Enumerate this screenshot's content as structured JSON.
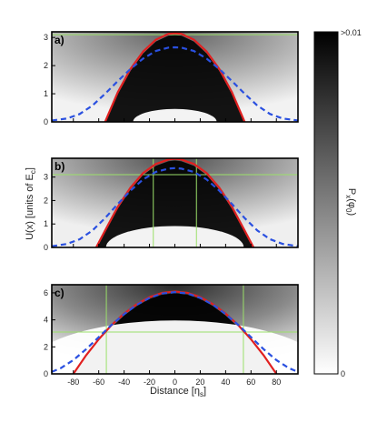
{
  "chart_data": [
    {
      "type": "heatmap",
      "panel_label": "a)",
      "xlim": [
        -97,
        97
      ],
      "ylim": [
        0,
        3.2
      ],
      "yticks": [
        0,
        1,
        2,
        3
      ],
      "xticks_labeled": false,
      "reference_lines": {
        "horizontal": [
          3.1
        ],
        "vertical": []
      },
      "series": [
        {
          "style": "solid",
          "color": "#e02020",
          "x": [
            -55,
            -45,
            -35,
            -25,
            -15,
            -5,
            0,
            5,
            15,
            25,
            35,
            45,
            55
          ],
          "y": [
            0.0,
            1.05,
            1.88,
            2.5,
            2.92,
            3.13,
            3.15,
            3.13,
            2.92,
            2.5,
            1.88,
            1.05,
            0.0
          ]
        },
        {
          "style": "dashed",
          "color": "#2a50e0",
          "x": [
            -97,
            -85,
            -75,
            -65,
            -55,
            -45,
            -35,
            -25,
            -15,
            -5,
            0,
            5,
            15,
            25,
            35,
            45,
            55,
            65,
            75,
            85,
            97
          ],
          "y": [
            0.05,
            0.12,
            0.28,
            0.58,
            1.0,
            1.45,
            1.88,
            2.25,
            2.52,
            2.64,
            2.65,
            2.64,
            2.52,
            2.25,
            1.88,
            1.45,
            1.0,
            0.58,
            0.28,
            0.12,
            0.05
          ]
        }
      ]
    },
    {
      "type": "heatmap",
      "panel_label": "b)",
      "xlim": [
        -97,
        97
      ],
      "ylim": [
        0,
        3.8
      ],
      "yticks": [
        0,
        1,
        2,
        3
      ],
      "xticks_labeled": false,
      "reference_lines": {
        "horizontal": [
          3.1
        ],
        "vertical": [
          -17,
          17
        ]
      },
      "series": [
        {
          "style": "solid",
          "color": "#e02020",
          "x": [
            -62,
            -55,
            -45,
            -35,
            -25,
            -15,
            -5,
            0,
            5,
            15,
            25,
            35,
            45,
            55,
            62
          ],
          "y": [
            0.0,
            0.72,
            1.73,
            2.55,
            3.17,
            3.56,
            3.75,
            3.78,
            3.75,
            3.56,
            3.17,
            2.55,
            1.73,
            0.72,
            0.0
          ]
        },
        {
          "style": "dashed",
          "color": "#2a50e0",
          "x": [
            -97,
            -85,
            -75,
            -65,
            -55,
            -45,
            -35,
            -25,
            -15,
            -5,
            0,
            5,
            15,
            25,
            35,
            45,
            55,
            65,
            75,
            85,
            97
          ],
          "y": [
            0.05,
            0.15,
            0.35,
            0.72,
            1.25,
            1.85,
            2.42,
            2.9,
            3.22,
            3.36,
            3.38,
            3.36,
            3.22,
            2.9,
            2.42,
            1.85,
            1.25,
            0.72,
            0.35,
            0.15,
            0.05
          ]
        }
      ]
    },
    {
      "type": "heatmap",
      "panel_label": "c)",
      "xlim": [
        -97,
        97
      ],
      "ylim": [
        0,
        6.6
      ],
      "yticks": [
        0,
        2,
        4,
        6
      ],
      "xticks": [
        -80,
        -60,
        -40,
        -20,
        0,
        20,
        40,
        60,
        80
      ],
      "xlabel": "Distance [η",
      "xlabel_sub": "s",
      "xlabel_close": "]",
      "reference_lines": {
        "horizontal": [
          3.1
        ],
        "vertical": [
          -54,
          54
        ]
      },
      "series": [
        {
          "style": "solid",
          "color": "#e02020",
          "x": [
            -80,
            -70,
            -60,
            -50,
            -40,
            -30,
            -20,
            -10,
            0,
            10,
            20,
            30,
            40,
            50,
            60,
            70,
            80
          ],
          "y": [
            0.0,
            1.37,
            2.56,
            3.6,
            4.46,
            5.16,
            5.68,
            6.0,
            6.1,
            6.0,
            5.68,
            5.16,
            4.46,
            3.6,
            2.56,
            1.37,
            0.0
          ]
        },
        {
          "style": "dashed",
          "color": "#2a50e0",
          "x": [
            -97,
            -90,
            -80,
            -70,
            -60,
            -50,
            -40,
            -30,
            -20,
            -10,
            0,
            10,
            20,
            30,
            40,
            50,
            60,
            70,
            80,
            90,
            97
          ],
          "y": [
            0.15,
            0.42,
            1.02,
            1.82,
            2.72,
            3.62,
            4.42,
            5.12,
            5.62,
            5.95,
            6.05,
            5.95,
            5.62,
            5.12,
            4.42,
            3.62,
            2.72,
            1.82,
            1.02,
            0.42,
            0.15
          ]
        }
      ]
    }
  ],
  "shared_ylabel": {
    "text": "U(x) [units of E",
    "sub": "c",
    "close": "]"
  },
  "colorbar": {
    "top_label": ">0.01",
    "bottom_label": "0",
    "label": "P",
    "label_sub": "x",
    "label_arg": "(φ",
    "label_arg_sub": "0",
    "label_close": ")"
  }
}
